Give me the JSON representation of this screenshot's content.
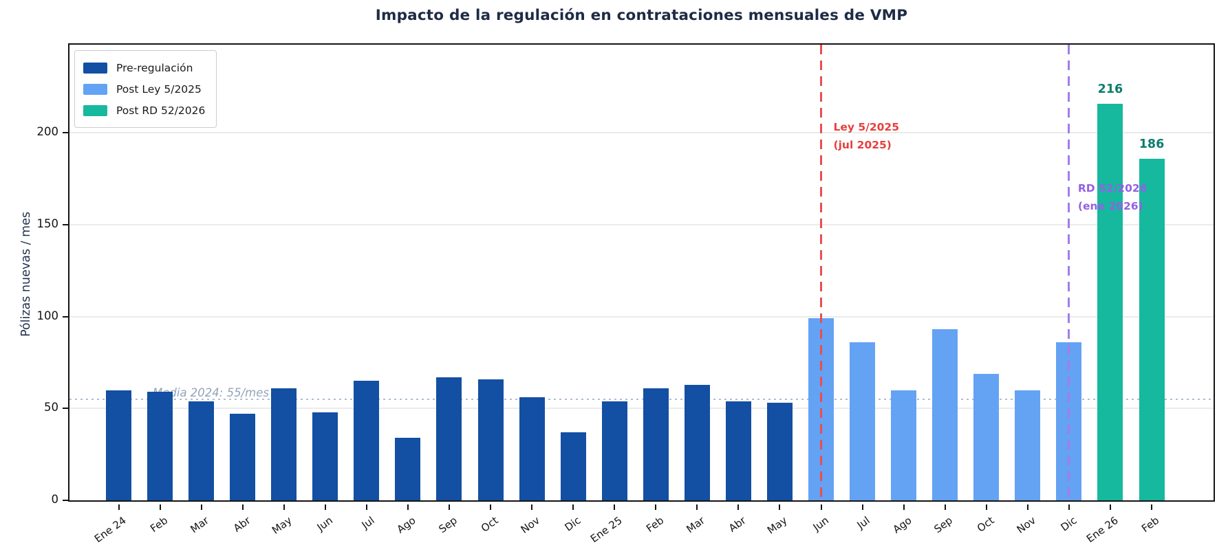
{
  "chart_data": {
    "type": "bar",
    "title": "Impacto de la regulación en contrataciones mensuales de VMP",
    "ylabel": "Pólizas nuevas / mes",
    "categories": [
      "Ene 24",
      "Feb",
      "Mar",
      "Abr",
      "May",
      "Jun",
      "Jul",
      "Ago",
      "Sep",
      "Oct",
      "Nov",
      "Dic",
      "Ene 25",
      "Feb",
      "Mar",
      "Abr",
      "May",
      "Jun",
      "Jul",
      "Ago",
      "Sep",
      "Oct",
      "Nov",
      "Dic",
      "Ene 26",
      "Feb"
    ],
    "values": [
      60,
      59,
      54,
      47,
      61,
      48,
      65,
      34,
      67,
      66,
      56,
      37,
      54,
      61,
      63,
      54,
      53,
      99,
      86,
      60,
      93,
      69,
      60,
      86,
      216,
      186
    ],
    "series": [
      {
        "name": "Pre-regulación",
        "color": "#134fa3",
        "from": 0,
        "to": 16
      },
      {
        "name": "Post Ley 5/2025",
        "color": "#64a2f4",
        "from": 17,
        "to": 23
      },
      {
        "name": "Post RD 52/2026",
        "color": "#16b89e",
        "from": 24,
        "to": 25
      }
    ],
    "ylim": [
      0,
      248
    ],
    "yticks": [
      0,
      50,
      100,
      150,
      200
    ],
    "grid": "horizontal",
    "legend_position": "upper-left",
    "reference_lines": [
      {
        "type": "vline",
        "between_categories": [
          17,
          18
        ],
        "style": "dashed",
        "color": "#e8504a",
        "label": "Ley 5/2025\n(jul 2025)",
        "label_color": "#e63f3c"
      },
      {
        "type": "vline",
        "between_categories": [
          23,
          24
        ],
        "style": "dashed",
        "color": "#a47ce6",
        "label": "RD 52/2026\n(ene 2026)",
        "label_color": "#9560e4"
      },
      {
        "type": "hline",
        "value": 55,
        "style": "dotted",
        "color": "#b0bdd1",
        "label": "Media 2024: 55/mes",
        "label_color": "#94a3b8"
      }
    ],
    "value_labels": {
      "color": "#0c7d6c",
      "items": [
        {
          "category_index": 24,
          "text": "216"
        },
        {
          "category_index": 25,
          "text": "186"
        }
      ]
    }
  }
}
